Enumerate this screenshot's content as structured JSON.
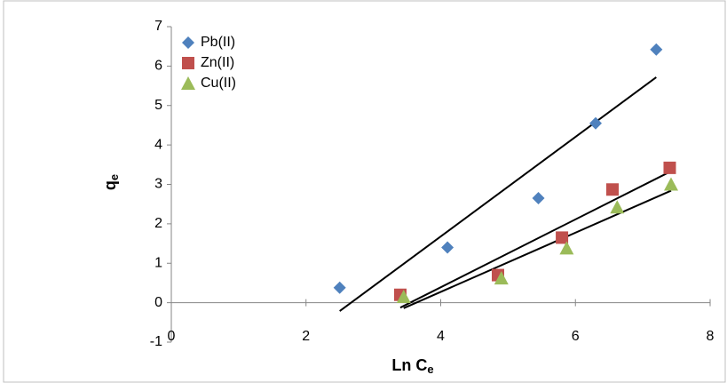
{
  "chart_data": {
    "type": "scatter",
    "xlabel": "Ln C",
    "xlabel_sub": "e",
    "ylabel": "q",
    "ylabel_sub": "e",
    "xlim": [
      0,
      8
    ],
    "xticks": [
      0,
      2,
      4,
      6,
      8
    ],
    "ylim": [
      -1,
      7
    ],
    "yticks": [
      -1,
      0,
      1,
      2,
      3,
      4,
      5,
      6,
      7
    ],
    "legend": "upper left",
    "trendline": true,
    "trendline_color": "#000000",
    "series": [
      {
        "name": "Pb(II)",
        "color": "#4f81bd",
        "marker": "diamond",
        "x": [
          2.5,
          4.1,
          5.45,
          6.3,
          7.2
        ],
        "values": [
          0.38,
          1.4,
          2.65,
          4.55,
          6.42
        ]
      },
      {
        "name": "Zn(II)",
        "color": "#c0504d",
        "marker": "square",
        "x": [
          3.4,
          4.85,
          5.8,
          6.55,
          7.4
        ],
        "values": [
          0.2,
          0.7,
          1.65,
          2.87,
          3.42
        ]
      },
      {
        "name": "Cu(II)",
        "color": "#9bbb59",
        "marker": "triangle",
        "x": [
          3.45,
          4.9,
          5.87,
          6.62,
          7.42
        ],
        "values": [
          0.15,
          0.62,
          1.38,
          2.42,
          3.0
        ]
      }
    ]
  }
}
